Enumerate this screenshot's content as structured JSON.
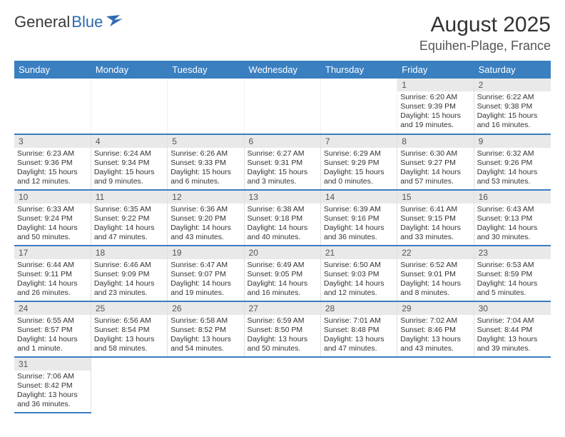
{
  "logo": {
    "part1": "General",
    "part2": "Blue"
  },
  "title": "August 2025",
  "location": "Equihen-Plage, France",
  "weekdays": [
    "Sunday",
    "Monday",
    "Tuesday",
    "Wednesday",
    "Thursday",
    "Friday",
    "Saturday"
  ],
  "colors": {
    "header_bg": "#3a7fc0",
    "row_divider": "#3a7fc0",
    "daynum_bg": "#e9e9e9",
    "logo_accent": "#2e6bb0"
  },
  "days": {
    "1": {
      "sunrise": "6:20 AM",
      "sunset": "9:39 PM",
      "daylight": "15 hours and 19 minutes."
    },
    "2": {
      "sunrise": "6:22 AM",
      "sunset": "9:38 PM",
      "daylight": "15 hours and 16 minutes."
    },
    "3": {
      "sunrise": "6:23 AM",
      "sunset": "9:36 PM",
      "daylight": "15 hours and 12 minutes."
    },
    "4": {
      "sunrise": "6:24 AM",
      "sunset": "9:34 PM",
      "daylight": "15 hours and 9 minutes."
    },
    "5": {
      "sunrise": "6:26 AM",
      "sunset": "9:33 PM",
      "daylight": "15 hours and 6 minutes."
    },
    "6": {
      "sunrise": "6:27 AM",
      "sunset": "9:31 PM",
      "daylight": "15 hours and 3 minutes."
    },
    "7": {
      "sunrise": "6:29 AM",
      "sunset": "9:29 PM",
      "daylight": "15 hours and 0 minutes."
    },
    "8": {
      "sunrise": "6:30 AM",
      "sunset": "9:27 PM",
      "daylight": "14 hours and 57 minutes."
    },
    "9": {
      "sunrise": "6:32 AM",
      "sunset": "9:26 PM",
      "daylight": "14 hours and 53 minutes."
    },
    "10": {
      "sunrise": "6:33 AM",
      "sunset": "9:24 PM",
      "daylight": "14 hours and 50 minutes."
    },
    "11": {
      "sunrise": "6:35 AM",
      "sunset": "9:22 PM",
      "daylight": "14 hours and 47 minutes."
    },
    "12": {
      "sunrise": "6:36 AM",
      "sunset": "9:20 PM",
      "daylight": "14 hours and 43 minutes."
    },
    "13": {
      "sunrise": "6:38 AM",
      "sunset": "9:18 PM",
      "daylight": "14 hours and 40 minutes."
    },
    "14": {
      "sunrise": "6:39 AM",
      "sunset": "9:16 PM",
      "daylight": "14 hours and 36 minutes."
    },
    "15": {
      "sunrise": "6:41 AM",
      "sunset": "9:15 PM",
      "daylight": "14 hours and 33 minutes."
    },
    "16": {
      "sunrise": "6:43 AM",
      "sunset": "9:13 PM",
      "daylight": "14 hours and 30 minutes."
    },
    "17": {
      "sunrise": "6:44 AM",
      "sunset": "9:11 PM",
      "daylight": "14 hours and 26 minutes."
    },
    "18": {
      "sunrise": "6:46 AM",
      "sunset": "9:09 PM",
      "daylight": "14 hours and 23 minutes."
    },
    "19": {
      "sunrise": "6:47 AM",
      "sunset": "9:07 PM",
      "daylight": "14 hours and 19 minutes."
    },
    "20": {
      "sunrise": "6:49 AM",
      "sunset": "9:05 PM",
      "daylight": "14 hours and 16 minutes."
    },
    "21": {
      "sunrise": "6:50 AM",
      "sunset": "9:03 PM",
      "daylight": "14 hours and 12 minutes."
    },
    "22": {
      "sunrise": "6:52 AM",
      "sunset": "9:01 PM",
      "daylight": "14 hours and 8 minutes."
    },
    "23": {
      "sunrise": "6:53 AM",
      "sunset": "8:59 PM",
      "daylight": "14 hours and 5 minutes."
    },
    "24": {
      "sunrise": "6:55 AM",
      "sunset": "8:57 PM",
      "daylight": "14 hours and 1 minute."
    },
    "25": {
      "sunrise": "6:56 AM",
      "sunset": "8:54 PM",
      "daylight": "13 hours and 58 minutes."
    },
    "26": {
      "sunrise": "6:58 AM",
      "sunset": "8:52 PM",
      "daylight": "13 hours and 54 minutes."
    },
    "27": {
      "sunrise": "6:59 AM",
      "sunset": "8:50 PM",
      "daylight": "13 hours and 50 minutes."
    },
    "28": {
      "sunrise": "7:01 AM",
      "sunset": "8:48 PM",
      "daylight": "13 hours and 47 minutes."
    },
    "29": {
      "sunrise": "7:02 AM",
      "sunset": "8:46 PM",
      "daylight": "13 hours and 43 minutes."
    },
    "30": {
      "sunrise": "7:04 AM",
      "sunset": "8:44 PM",
      "daylight": "13 hours and 39 minutes."
    },
    "31": {
      "sunrise": "7:06 AM",
      "sunset": "8:42 PM",
      "daylight": "13 hours and 36 minutes."
    }
  },
  "grid": [
    [
      null,
      null,
      null,
      null,
      null,
      "1",
      "2"
    ],
    [
      "3",
      "4",
      "5",
      "6",
      "7",
      "8",
      "9"
    ],
    [
      "10",
      "11",
      "12",
      "13",
      "14",
      "15",
      "16"
    ],
    [
      "17",
      "18",
      "19",
      "20",
      "21",
      "22",
      "23"
    ],
    [
      "24",
      "25",
      "26",
      "27",
      "28",
      "29",
      "30"
    ],
    [
      "31",
      null,
      null,
      null,
      null,
      null,
      null
    ]
  ],
  "labels": {
    "sunrise": "Sunrise:",
    "sunset": "Sunset:",
    "daylight": "Daylight:"
  }
}
